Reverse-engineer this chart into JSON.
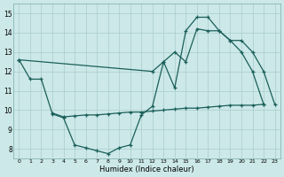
{
  "bg_color": "#cce8e8",
  "grid_color": "#aacccc",
  "line_color": "#1a5f5a",
  "xlabel": "Humidex (Indice chaleur)",
  "ylim": [
    7.5,
    15.5
  ],
  "xlim": [
    -0.5,
    23.5
  ],
  "yticks": [
    8,
    9,
    10,
    11,
    12,
    13,
    14,
    15
  ],
  "xticks": [
    0,
    1,
    2,
    3,
    4,
    5,
    6,
    7,
    8,
    9,
    10,
    11,
    12,
    13,
    14,
    15,
    16,
    17,
    18,
    19,
    20,
    21,
    22,
    23
  ],
  "line1_x": [
    0,
    1,
    2,
    3,
    4,
    5,
    6,
    7,
    8,
    9,
    10,
    11,
    12,
    13,
    14,
    15,
    16,
    17,
    18,
    19,
    20,
    21,
    22
  ],
  "line1_y": [
    12.6,
    11.6,
    11.6,
    9.8,
    9.6,
    8.2,
    8.05,
    7.9,
    7.75,
    8.05,
    8.2,
    9.75,
    10.2,
    12.5,
    11.15,
    14.1,
    14.8,
    14.8,
    14.1,
    13.6,
    13.0,
    12.0,
    10.3
  ],
  "line2_x": [
    3,
    4,
    5,
    6,
    7,
    8,
    9,
    10,
    11,
    12,
    13,
    14,
    15,
    16,
    17,
    18,
    19,
    20,
    21,
    22
  ],
  "line2_y": [
    9.85,
    9.65,
    9.7,
    9.75,
    9.75,
    9.8,
    9.85,
    9.9,
    9.9,
    9.95,
    10.0,
    10.05,
    10.1,
    10.1,
    10.15,
    10.2,
    10.25,
    10.25,
    10.25,
    10.3
  ],
  "line3_x": [
    0,
    12,
    13,
    14,
    15,
    16,
    17,
    18,
    19,
    20,
    21,
    22,
    23
  ],
  "line3_y": [
    12.6,
    12.0,
    12.5,
    13.0,
    12.5,
    14.2,
    14.1,
    14.1,
    13.6,
    13.6,
    13.0,
    12.0,
    10.3
  ]
}
